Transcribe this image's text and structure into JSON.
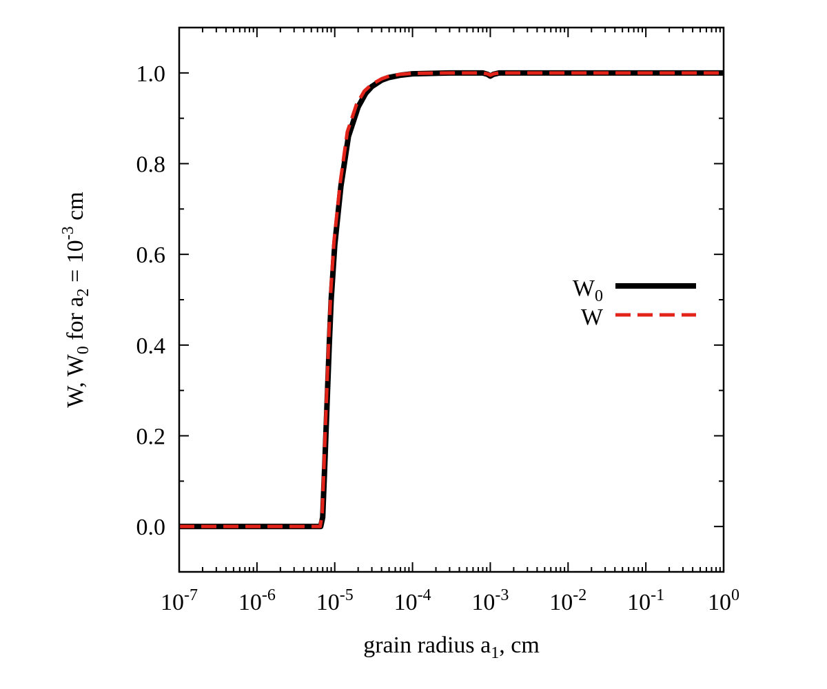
{
  "chart_data": {
    "type": "line",
    "title": "",
    "xscale": "log",
    "xlim": [
      1e-07,
      1
    ],
    "ylim": [
      -0.1,
      1.1
    ],
    "xlabel": {
      "main": "grain radius a",
      "sub": "1",
      "suffix": ", cm"
    },
    "ylabel": {
      "parts": [
        "W, W",
        "0",
        "   for a",
        "2",
        " = 10",
        "-3",
        " cm"
      ]
    },
    "x_ticks": [
      {
        "value": 1e-07,
        "base": "10",
        "exp": "-7"
      },
      {
        "value": 1e-06,
        "base": "10",
        "exp": "-6"
      },
      {
        "value": 1e-05,
        "base": "10",
        "exp": "-5"
      },
      {
        "value": 0.0001,
        "base": "10",
        "exp": "-4"
      },
      {
        "value": 0.001,
        "base": "10",
        "exp": "-3"
      },
      {
        "value": 0.01,
        "base": "10",
        "exp": "-2"
      },
      {
        "value": 0.1,
        "base": "10",
        "exp": "-1"
      },
      {
        "value": 1,
        "base": "10",
        "exp": "0"
      }
    ],
    "y_ticks": [
      {
        "value": 0.0,
        "label": "0.0"
      },
      {
        "value": 0.2,
        "label": "0.2"
      },
      {
        "value": 0.4,
        "label": "0.4"
      },
      {
        "value": 0.6,
        "label": "0.6"
      },
      {
        "value": 0.8,
        "label": "0.8"
      },
      {
        "value": 1.0,
        "label": "1.0"
      }
    ],
    "legend_position": "right-middle",
    "series": [
      {
        "name": "W0",
        "legend_main": "W",
        "legend_sub": "0",
        "color": "#000000",
        "style": "solid",
        "points": [
          [
            1e-07,
            0
          ],
          [
            6.6e-06,
            0
          ],
          [
            7e-06,
            0.02
          ],
          [
            7.5e-06,
            0.15
          ],
          [
            8e-06,
            0.28
          ],
          [
            8.5e-06,
            0.4
          ],
          [
            9e-06,
            0.5
          ],
          [
            1e-05,
            0.62
          ],
          [
            1.2e-05,
            0.75
          ],
          [
            1.5e-05,
            0.86
          ],
          [
            2e-05,
            0.925
          ],
          [
            2.5e-05,
            0.955
          ],
          [
            3e-05,
            0.97
          ],
          [
            4e-05,
            0.984
          ],
          [
            5e-05,
            0.99
          ],
          [
            7e-05,
            0.995
          ],
          [
            0.0001,
            0.998
          ],
          [
            0.0003,
            1.0
          ],
          [
            0.0008,
            1.0
          ],
          [
            0.00092,
            0.997
          ],
          [
            0.001,
            0.993
          ],
          [
            0.0011,
            0.997
          ],
          [
            0.0013,
            1.0
          ],
          [
            0.01,
            1.0
          ],
          [
            0.1,
            1.0
          ],
          [
            1,
            1.0
          ]
        ]
      },
      {
        "name": "W",
        "legend_main": "W",
        "legend_sub": "",
        "color": "#e2231a",
        "style": "dashed",
        "points": [
          [
            1e-07,
            0
          ],
          [
            6.5e-06,
            0
          ],
          [
            6.9e-06,
            0.03
          ],
          [
            7.4e-06,
            0.17
          ],
          [
            7.9e-06,
            0.3
          ],
          [
            8.4e-06,
            0.42
          ],
          [
            8.9e-06,
            0.52
          ],
          [
            9.8e-06,
            0.63
          ],
          [
            1.18e-05,
            0.76
          ],
          [
            1.45e-05,
            0.87
          ],
          [
            1.9e-05,
            0.93
          ],
          [
            2.4e-05,
            0.96
          ],
          [
            3e-05,
            0.975
          ],
          [
            4e-05,
            0.987
          ],
          [
            5e-05,
            0.993
          ],
          [
            7e-05,
            0.997
          ],
          [
            0.0001,
            0.999
          ],
          [
            0.0003,
            1.0
          ],
          [
            0.0008,
            1.0
          ],
          [
            0.00092,
            0.998
          ],
          [
            0.001,
            0.995
          ],
          [
            0.0011,
            0.998
          ],
          [
            0.0013,
            1.0
          ],
          [
            0.01,
            1.0
          ],
          [
            0.1,
            1.0
          ],
          [
            1,
            1.0
          ]
        ]
      }
    ]
  }
}
